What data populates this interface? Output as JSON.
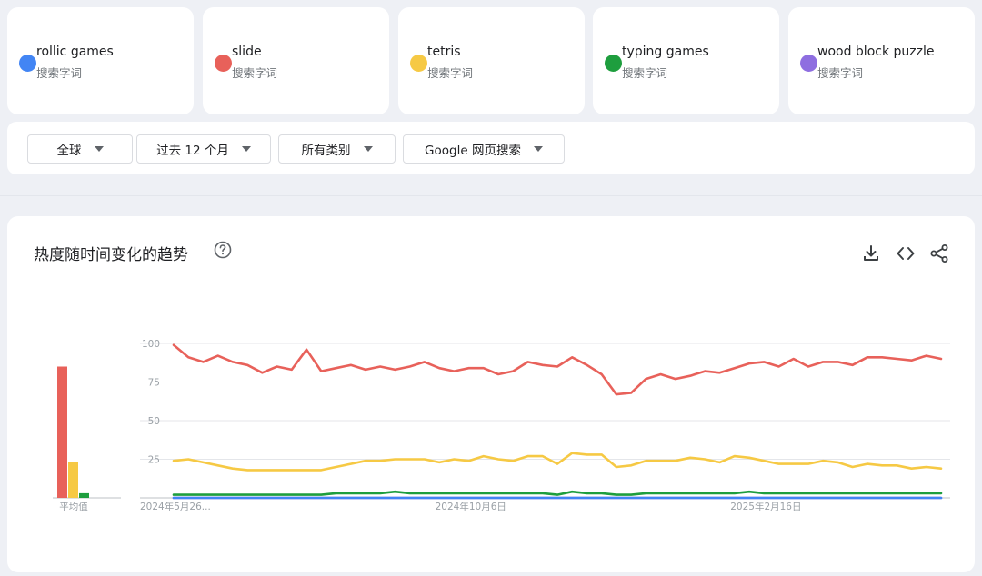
{
  "terms": [
    {
      "name": "rollic games",
      "sub": "搜索字词",
      "color": "#4285f4"
    },
    {
      "name": "slide",
      "sub": "搜索字词",
      "color": "#e8615a"
    },
    {
      "name": "tetris",
      "sub": "搜索字词",
      "color": "#f6c944"
    },
    {
      "name": "typing games",
      "sub": "搜索字词",
      "color": "#1e9e3e"
    },
    {
      "name": "wood block puzzle",
      "sub": "搜索字词",
      "color": "#8e6ee0"
    }
  ],
  "filters": {
    "region": "全球",
    "time": "过去 12 个月",
    "category": "所有类别",
    "source": "Google 网页搜索"
  },
  "chart_header": {
    "title": "热度随时间变化的趋势"
  },
  "chart_data": {
    "type": "line",
    "ylim": [
      0,
      100
    ],
    "yticks": [
      "100",
      "75",
      "50",
      "25"
    ],
    "xtick_labels": [
      "2024年5月26...",
      "2024年10月6日",
      "2025年2月16日"
    ],
    "xtick_indices": [
      0,
      20,
      40
    ],
    "num_points": 53,
    "series": [
      {
        "name": "slide",
        "color": "#e8615a",
        "values": [
          99,
          91,
          88,
          92,
          88,
          86,
          81,
          85,
          83,
          96,
          82,
          84,
          86,
          83,
          85,
          83,
          85,
          88,
          84,
          82,
          84,
          84,
          80,
          82,
          88,
          86,
          85,
          91,
          86,
          80,
          67,
          68,
          77,
          80,
          77,
          79,
          82,
          81,
          84,
          87,
          88,
          85,
          90,
          85,
          88,
          88,
          86,
          91,
          91,
          90,
          89,
          92,
          90
        ]
      },
      {
        "name": "tetris",
        "color": "#f6c944",
        "values": [
          24,
          25,
          23,
          21,
          19,
          18,
          18,
          18,
          18,
          18,
          18,
          20,
          22,
          24,
          24,
          25,
          25,
          25,
          23,
          25,
          24,
          27,
          25,
          24,
          27,
          27,
          22,
          29,
          28,
          28,
          20,
          21,
          24,
          24,
          24,
          26,
          25,
          23,
          27,
          26,
          24,
          22,
          22,
          22,
          24,
          23,
          20,
          22,
          21,
          21,
          19,
          20,
          19
        ]
      },
      {
        "name": "typing games",
        "color": "#1e9e3e",
        "values": [
          2,
          2,
          2,
          2,
          2,
          2,
          2,
          2,
          2,
          2,
          2,
          3,
          3,
          3,
          3,
          4,
          3,
          3,
          3,
          3,
          3,
          3,
          3,
          3,
          3,
          3,
          2,
          4,
          3,
          3,
          2,
          2,
          3,
          3,
          3,
          3,
          3,
          3,
          3,
          4,
          3,
          3,
          3,
          3,
          3,
          3,
          3,
          3,
          3,
          3,
          3,
          3,
          3
        ]
      },
      {
        "name": "wood block puzzle",
        "color": "#8e6ee0",
        "values": [
          0,
          0,
          0,
          0,
          0,
          0,
          0,
          0,
          0,
          0,
          0,
          0,
          0,
          0,
          0,
          0,
          0,
          0,
          0,
          0,
          0,
          0,
          0,
          0,
          0,
          0,
          0,
          0,
          0,
          0,
          0,
          0,
          0,
          0,
          0,
          0,
          0,
          0,
          0,
          0,
          0,
          0,
          0,
          0,
          0,
          0,
          0,
          0,
          0,
          0,
          0,
          0,
          0
        ]
      },
      {
        "name": "rollic games",
        "color": "#4285f4",
        "values": [
          0,
          0,
          0,
          0,
          0,
          0,
          0,
          0,
          0,
          0,
          0,
          0,
          0,
          0,
          0,
          0,
          0,
          0,
          0,
          0,
          0,
          0,
          0,
          0,
          0,
          0,
          0,
          0,
          0,
          0,
          0,
          0,
          0,
          0,
          0,
          0,
          0,
          0,
          0,
          0,
          0,
          0,
          0,
          0,
          0,
          0,
          0,
          0,
          0,
          0,
          0,
          0,
          0
        ]
      }
    ],
    "averages": {
      "label": "平均值",
      "bars": [
        {
          "name": "slide",
          "value": 85,
          "color": "#e8615a"
        },
        {
          "name": "tetris",
          "value": 23,
          "color": "#f6c944"
        },
        {
          "name": "typing games",
          "value": 3,
          "color": "#1e9e3e"
        }
      ]
    }
  }
}
